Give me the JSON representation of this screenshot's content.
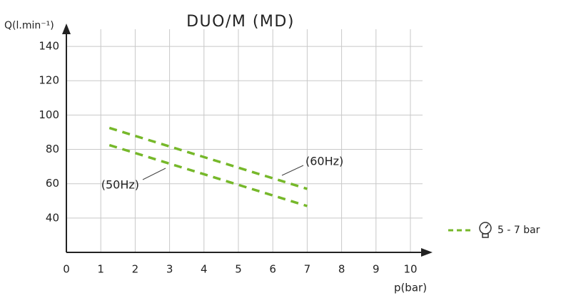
{
  "chart_data": {
    "type": "line",
    "title": "DUO/M (MD)",
    "y_label": "Q(l.min⁻¹)",
    "x_label": "p(bar)",
    "xlim": [
      0,
      10
    ],
    "xticks": [
      0,
      1,
      2,
      3,
      4,
      5,
      6,
      7,
      8,
      9,
      10
    ],
    "ylim": [
      20,
      150
    ],
    "yticks": [
      40,
      60,
      80,
      100,
      120,
      140
    ],
    "grid": true,
    "series": [
      {
        "name": "(60Hz)",
        "color": "#76b82a",
        "x": [
          1.25,
          7
        ],
        "values": [
          92.5,
          57
        ]
      },
      {
        "name": "(50Hz)",
        "color": "#76b82a",
        "x": [
          1.25,
          7
        ],
        "values": [
          82.5,
          47
        ]
      }
    ],
    "legend_label": "5 - 7 bar"
  }
}
